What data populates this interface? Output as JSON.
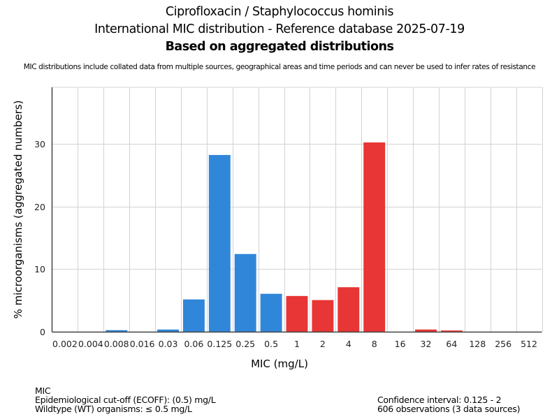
{
  "header": {
    "title_line1": "Ciprofloxacin / Staphylococcus hominis",
    "title_line2": "International MIC distribution - Reference database 2025-07-19",
    "title_line3": "Based on aggregated distributions",
    "subtitle": "MIC distributions include collated data from multiple sources, geographical areas and time periods and can never be used to infer rates of resistance"
  },
  "footer": {
    "left": [
      "MIC",
      "Epidemiological cut-off (ECOFF): (0.5) mg/L",
      "Wildtype (WT) organisms: ≤ 0.5 mg/L"
    ],
    "right": [
      "Confidence interval: 0.125 - 2",
      "606 observations (3 data sources)"
    ]
  },
  "chart_data": {
    "type": "bar",
    "title": "Ciprofloxacin / Staphylococcus hominis",
    "xlabel": "MIC (mg/L)",
    "ylabel": "% microorganisms (aggregated numbers)",
    "categories": [
      "0.002",
      "0.004",
      "0.008",
      "0.016",
      "0.03",
      "0.06",
      "0.125",
      "0.25",
      "0.5",
      "1",
      "2",
      "4",
      "8",
      "16",
      "32",
      "64",
      "128",
      "256",
      "512"
    ],
    "values": [
      0,
      0,
      0.25,
      0,
      0.35,
      5.15,
      28.2,
      12.4,
      6.05,
      5.7,
      5.05,
      7.1,
      30.2,
      0,
      0.35,
      0.2,
      0,
      0,
      0
    ],
    "groups": [
      "wt",
      "wt",
      "wt",
      "wt",
      "wt",
      "wt",
      "wt",
      "wt",
      "wt",
      "nwt",
      "nwt",
      "nwt",
      "nwt",
      "nwt",
      "nwt",
      "nwt",
      "nwt",
      "nwt",
      "nwt"
    ],
    "colors": {
      "wt": "#3086d9",
      "nwt": "#e83535",
      "grid": "#d3d3d3",
      "axis": "#444444"
    },
    "yticks": [
      0,
      10,
      20,
      30
    ],
    "ylim": [
      0,
      39
    ],
    "grid": true,
    "legend": "none"
  }
}
